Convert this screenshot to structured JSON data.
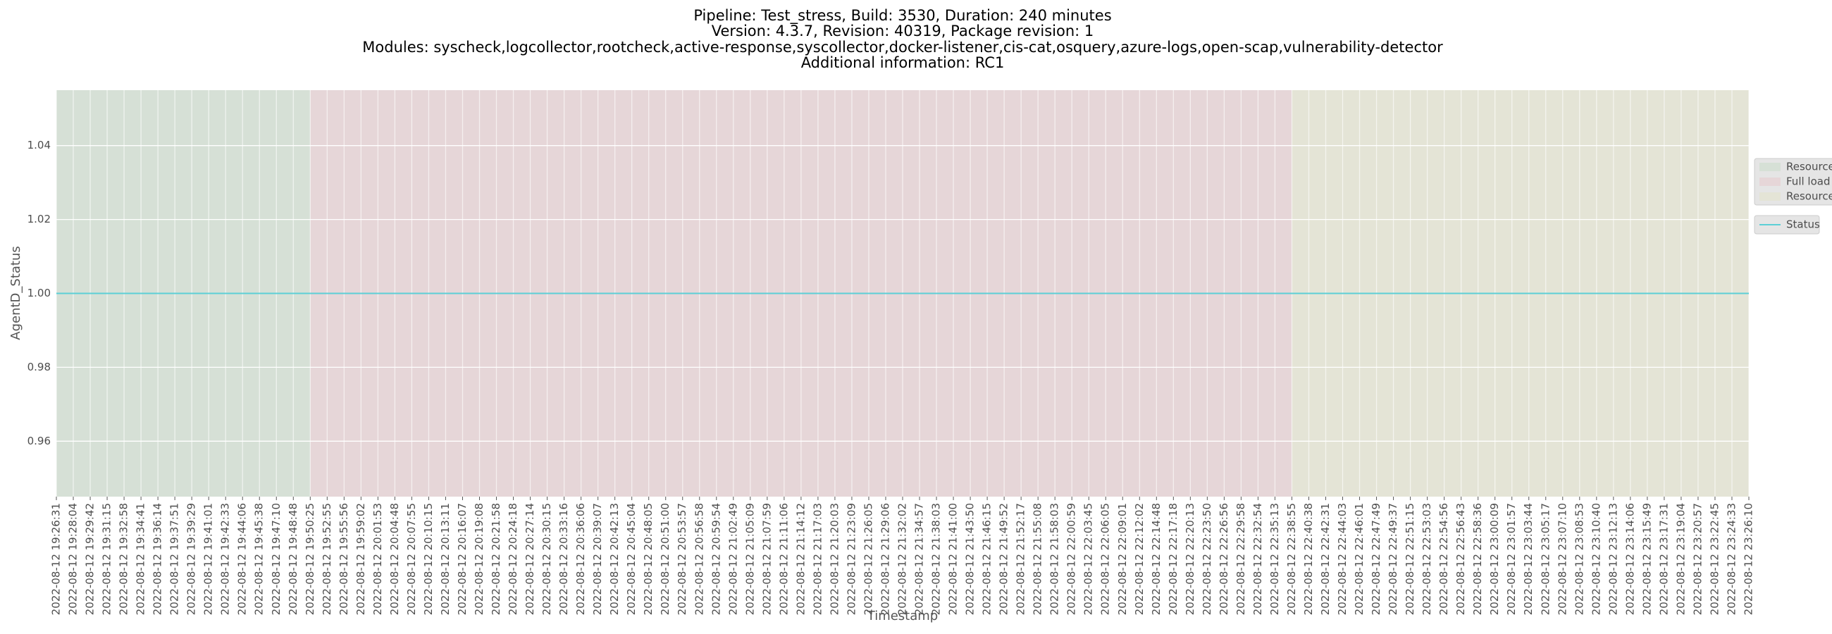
{
  "chart_data": {
    "type": "line",
    "title": [
      "Pipeline: Test_stress, Build: 3530, Duration: 240 minutes",
      "Version: 4.3.7, Revision: 40319, Package revision: 1",
      "Modules: syscheck,logcollector,rootcheck,active-response,syscollector,docker-listener,cis-cat,osquery,azure-logs,open-scap,vulnerability-detector",
      "Additional information: RC1"
    ],
    "x_label": "Timestamp",
    "y_label": "AgentD_Status",
    "categories": [
      "2022-08-12 19:26:31",
      "2022-08-12 19:28:04",
      "2022-08-12 19:29:42",
      "2022-08-12 19:31:15",
      "2022-08-12 19:32:58",
      "2022-08-12 19:34:41",
      "2022-08-12 19:36:14",
      "2022-08-12 19:37:51",
      "2022-08-12 19:39:29",
      "2022-08-12 19:41:01",
      "2022-08-12 19:42:33",
      "2022-08-12 19:44:06",
      "2022-08-12 19:45:38",
      "2022-08-12 19:47:10",
      "2022-08-12 19:48:48",
      "2022-08-12 19:50:25",
      "2022-08-12 19:52:55",
      "2022-08-12 19:55:56",
      "2022-08-12 19:59:02",
      "2022-08-12 20:01:53",
      "2022-08-12 20:04:48",
      "2022-08-12 20:07:55",
      "2022-08-12 20:10:15",
      "2022-08-12 20:13:11",
      "2022-08-12 20:16:07",
      "2022-08-12 20:19:08",
      "2022-08-12 20:21:58",
      "2022-08-12 20:24:18",
      "2022-08-12 20:27:14",
      "2022-08-12 20:30:15",
      "2022-08-12 20:33:16",
      "2022-08-12 20:36:06",
      "2022-08-12 20:39:07",
      "2022-08-12 20:42:13",
      "2022-08-12 20:45:04",
      "2022-08-12 20:48:05",
      "2022-08-12 20:51:00",
      "2022-08-12 20:53:57",
      "2022-08-12 20:56:58",
      "2022-08-12 20:59:54",
      "2022-08-12 21:02:49",
      "2022-08-12 21:05:09",
      "2022-08-12 21:07:59",
      "2022-08-12 21:11:06",
      "2022-08-12 21:14:12",
      "2022-08-12 21:17:03",
      "2022-08-12 21:20:03",
      "2022-08-12 21:23:09",
      "2022-08-12 21:26:05",
      "2022-08-12 21:29:06",
      "2022-08-12 21:32:02",
      "2022-08-12 21:34:57",
      "2022-08-12 21:38:03",
      "2022-08-12 21:41:00",
      "2022-08-12 21:43:50",
      "2022-08-12 21:46:15",
      "2022-08-12 21:49:52",
      "2022-08-12 21:52:17",
      "2022-08-12 21:55:08",
      "2022-08-12 21:58:03",
      "2022-08-12 22:00:59",
      "2022-08-12 22:03:45",
      "2022-08-12 22:06:05",
      "2022-08-12 22:09:01",
      "2022-08-12 22:12:02",
      "2022-08-12 22:14:48",
      "2022-08-12 22:17:18",
      "2022-08-12 22:20:13",
      "2022-08-12 22:23:50",
      "2022-08-12 22:26:56",
      "2022-08-12 22:29:58",
      "2022-08-12 22:32:54",
      "2022-08-12 22:35:13",
      "2022-08-12 22:38:55",
      "2022-08-12 22:40:38",
      "2022-08-12 22:42:31",
      "2022-08-12 22:44:03",
      "2022-08-12 22:46:01",
      "2022-08-12 22:47:49",
      "2022-08-12 22:49:37",
      "2022-08-12 22:51:15",
      "2022-08-12 22:53:03",
      "2022-08-12 22:54:56",
      "2022-08-12 22:56:43",
      "2022-08-12 22:58:36",
      "2022-08-12 23:00:09",
      "2022-08-12 23:01:57",
      "2022-08-12 23:03:44",
      "2022-08-12 23:05:17",
      "2022-08-12 23:07:10",
      "2022-08-12 23:08:53",
      "2022-08-12 23:10:40",
      "2022-08-12 23:12:13",
      "2022-08-12 23:14:06",
      "2022-08-12 23:15:49",
      "2022-08-12 23:17:31",
      "2022-08-12 23:19:04",
      "2022-08-12 23:20:57",
      "2022-08-12 23:22:45",
      "2022-08-12 23:24:33",
      "2022-08-12 23:26:10"
    ],
    "spans": [
      {
        "name": "Resources",
        "color": "#d6e0d6",
        "start": "2022-08-12 19:26:31",
        "end": "2022-08-12 19:50:25"
      },
      {
        "name": "Full load",
        "color": "#e6d6d8",
        "start": "2022-08-12 19:50:25",
        "end": "2022-08-12 22:38:55"
      },
      {
        "name": "Resources",
        "color": "#e4e4d6",
        "start": "2022-08-12 22:38:55",
        "end": "2022-08-12 23:26:10"
      }
    ],
    "series": [
      {
        "name": "Status",
        "color": "#5ccfd6",
        "values": [
          1,
          1,
          1,
          1,
          1,
          1,
          1,
          1,
          1,
          1,
          1,
          1,
          1,
          1,
          1,
          1,
          1,
          1,
          1,
          1,
          1,
          1,
          1,
          1,
          1,
          1,
          1,
          1,
          1,
          1,
          1,
          1,
          1,
          1,
          1,
          1,
          1,
          1,
          1,
          1,
          1,
          1,
          1,
          1,
          1,
          1,
          1,
          1,
          1,
          1,
          1,
          1,
          1,
          1,
          1,
          1,
          1,
          1,
          1,
          1,
          1,
          1,
          1,
          1,
          1,
          1,
          1,
          1,
          1,
          1,
          1,
          1,
          1,
          1,
          1,
          1,
          1,
          1,
          1,
          1,
          1,
          1,
          1,
          1,
          1,
          1,
          1,
          1,
          1,
          1,
          1,
          1,
          1,
          1,
          1,
          1,
          1,
          1,
          1,
          1,
          1
        ]
      }
    ],
    "ylim": [
      0.945,
      1.055
    ],
    "yticks": [
      0.96,
      0.98,
      {
        "value": 1,
        "label": "1.00"
      },
      1.02,
      1.04
    ],
    "grid": true
  }
}
